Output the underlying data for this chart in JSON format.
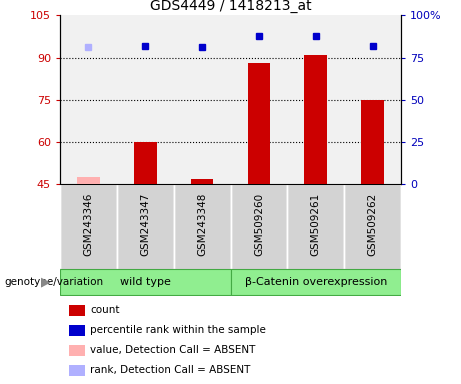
{
  "title": "GDS4449 / 1418213_at",
  "categories": [
    "GSM243346",
    "GSM243347",
    "GSM243348",
    "GSM509260",
    "GSM509261",
    "GSM509262"
  ],
  "left_ylim": [
    45,
    105
  ],
  "right_ylim": [
    0,
    100
  ],
  "left_yticks": [
    45,
    60,
    75,
    90,
    105
  ],
  "right_yticks": [
    0,
    25,
    50,
    75,
    100
  ],
  "right_yticklabels": [
    "0",
    "25",
    "50",
    "75",
    "100%"
  ],
  "bar_values": [
    null,
    60,
    47,
    88,
    91,
    75
  ],
  "bar_color_present": "#cc0000",
  "bar_color_absent": "#ffb0b0",
  "absent_bar_value": 47.5,
  "absent_bar_index": 0,
  "dot_values": [
    null,
    82,
    81,
    88,
    88,
    82
  ],
  "dot_color_present": "#0000cc",
  "dot_color_absent": "#b0b0ff",
  "absent_dot_value": 81,
  "absent_dot_index": 0,
  "left_tick_color": "#cc0000",
  "right_tick_color": "#0000bb",
  "dotted_lines": [
    60,
    75,
    90
  ],
  "col_bg_color": "#d3d3d3",
  "group1_label": "wild type",
  "group1_indices": [
    0,
    1,
    2
  ],
  "group2_label": "β-Catenin overexpression",
  "group2_indices": [
    3,
    4,
    5
  ],
  "group_color": "#90ee90",
  "genotype_label": "genotype/variation",
  "legend_items": [
    {
      "label": "count",
      "color": "#cc0000"
    },
    {
      "label": "percentile rank within the sample",
      "color": "#0000cc"
    },
    {
      "label": "value, Detection Call = ABSENT",
      "color": "#ffb0b0"
    },
    {
      "label": "rank, Detection Call = ABSENT",
      "color": "#b0b0ff"
    }
  ],
  "bar_width": 0.4
}
